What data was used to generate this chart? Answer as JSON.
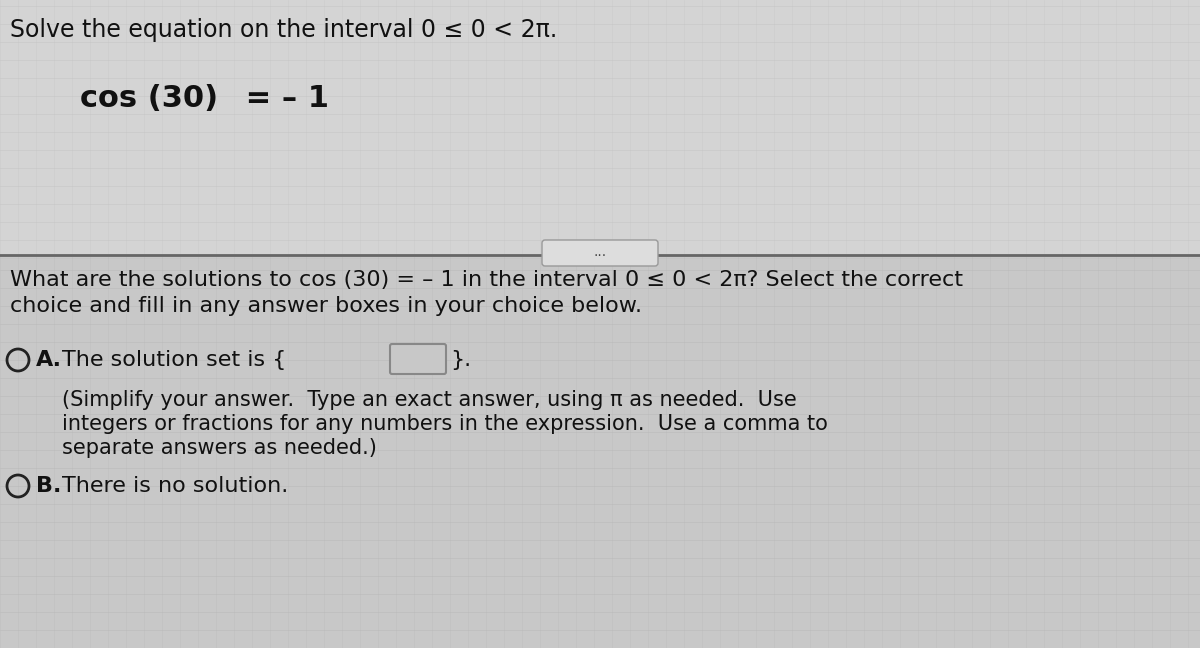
{
  "bg_color": "#cbcbcb",
  "top_bg_color": "#d4d4d4",
  "bottom_bg_color": "#c8c8c8",
  "text_color": "#111111",
  "title_line": "Solve the equation on the interval 0 ≤ 0 < 2π.",
  "equation_cos": "cos (30)",
  "equation_rest": " = – 1",
  "separator_dots": "...",
  "question_line1": "What are the solutions to cos (30) = – 1 in the interval 0 ≤ 0 < 2π? Select the correct",
  "question_line2": "choice and fill in any answer boxes in your choice below.",
  "choice_A_text": "The solution set is {",
  "choice_A_end": "}.",
  "choice_A_sub1": "(Simplify your answer.  Type an exact answer, using π as needed.  Use",
  "choice_A_sub2": "integers or fractions for any numbers in the expression.  Use a comma to",
  "choice_A_sub3": "separate answers as needed.)",
  "choice_B_main": "There is no solution.",
  "grid_color": "#bbbbbb",
  "line_color": "#666666",
  "circle_color": "#222222",
  "dot_box_color": "#dddddd",
  "dot_box_edge": "#999999",
  "input_box_color": "#c8c8c8",
  "input_box_edge": "#888888"
}
